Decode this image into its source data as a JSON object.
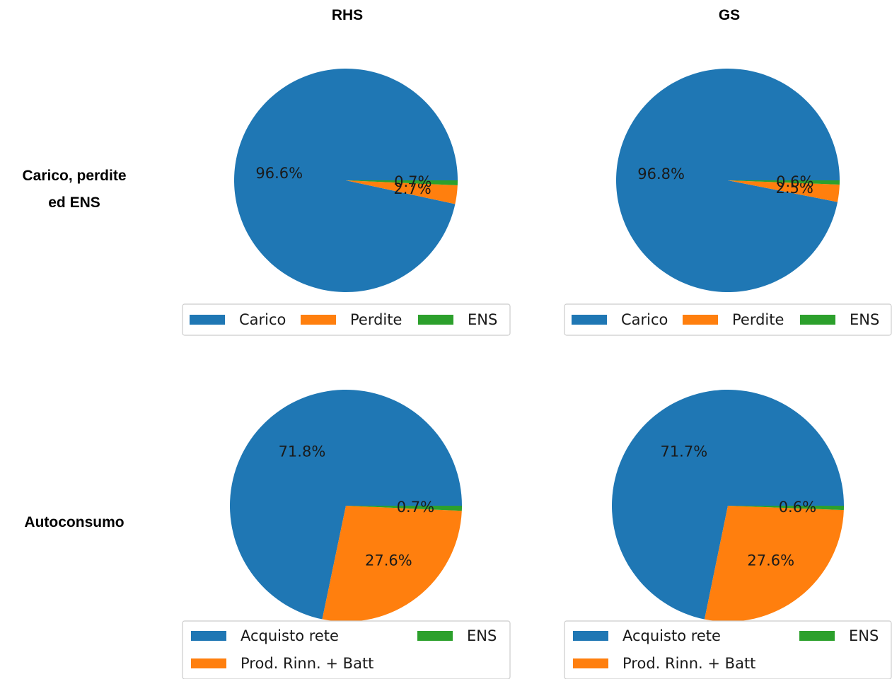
{
  "columns": [
    "RHS",
    "GS"
  ],
  "rows": [
    "Carico, perdite ed ENS",
    "Autoconsumo"
  ],
  "row_lines": [
    [
      "Carico, perdite",
      "ed ENS"
    ],
    [
      "Autoconsumo"
    ]
  ],
  "colors": {
    "blue": "#1f77b4",
    "orange": "#ff7f0e",
    "green": "#2ca02c"
  },
  "chart_data": [
    {
      "type": "pie",
      "column": "RHS",
      "row": "Carico, perdite ed ENS",
      "labels": [
        "Carico",
        "Perdite",
        "ENS"
      ],
      "values": [
        96.6,
        2.7,
        0.7
      ],
      "value_labels": [
        "96.6%",
        "2.7%",
        "0.7%"
      ],
      "legend": {
        "layout": "one-row",
        "entries": [
          "Carico",
          "Perdite",
          "ENS"
        ]
      }
    },
    {
      "type": "pie",
      "column": "GS",
      "row": "Carico, perdite ed ENS",
      "labels": [
        "Carico",
        "Perdite",
        "ENS"
      ],
      "values": [
        96.8,
        2.5,
        0.6
      ],
      "value_labels": [
        "96.8%",
        "2.5%",
        "0.6%"
      ],
      "legend": {
        "layout": "one-row",
        "entries": [
          "Carico",
          "Perdite",
          "ENS"
        ]
      }
    },
    {
      "type": "pie",
      "column": "RHS",
      "row": "Autoconsumo",
      "labels": [
        "Acquisto rete",
        "Prod. Rinn. + Batt",
        "ENS"
      ],
      "values": [
        71.8,
        27.6,
        0.7
      ],
      "value_labels": [
        "71.8%",
        "27.6%",
        "0.7%"
      ],
      "legend": {
        "layout": "two-columns",
        "entries": [
          "Acquisto rete",
          "ENS",
          "Prod. Rinn. + Batt"
        ]
      }
    },
    {
      "type": "pie",
      "column": "GS",
      "row": "Autoconsumo",
      "labels": [
        "Acquisto rete",
        "Prod. Rinn. + Batt",
        "ENS"
      ],
      "values": [
        71.7,
        27.6,
        0.6
      ],
      "value_labels": [
        "71.7%",
        "27.6%",
        "0.6%"
      ],
      "legend": {
        "layout": "two-columns",
        "entries": [
          "Acquisto rete",
          "ENS",
          "Prod. Rinn. + Batt"
        ]
      }
    }
  ]
}
